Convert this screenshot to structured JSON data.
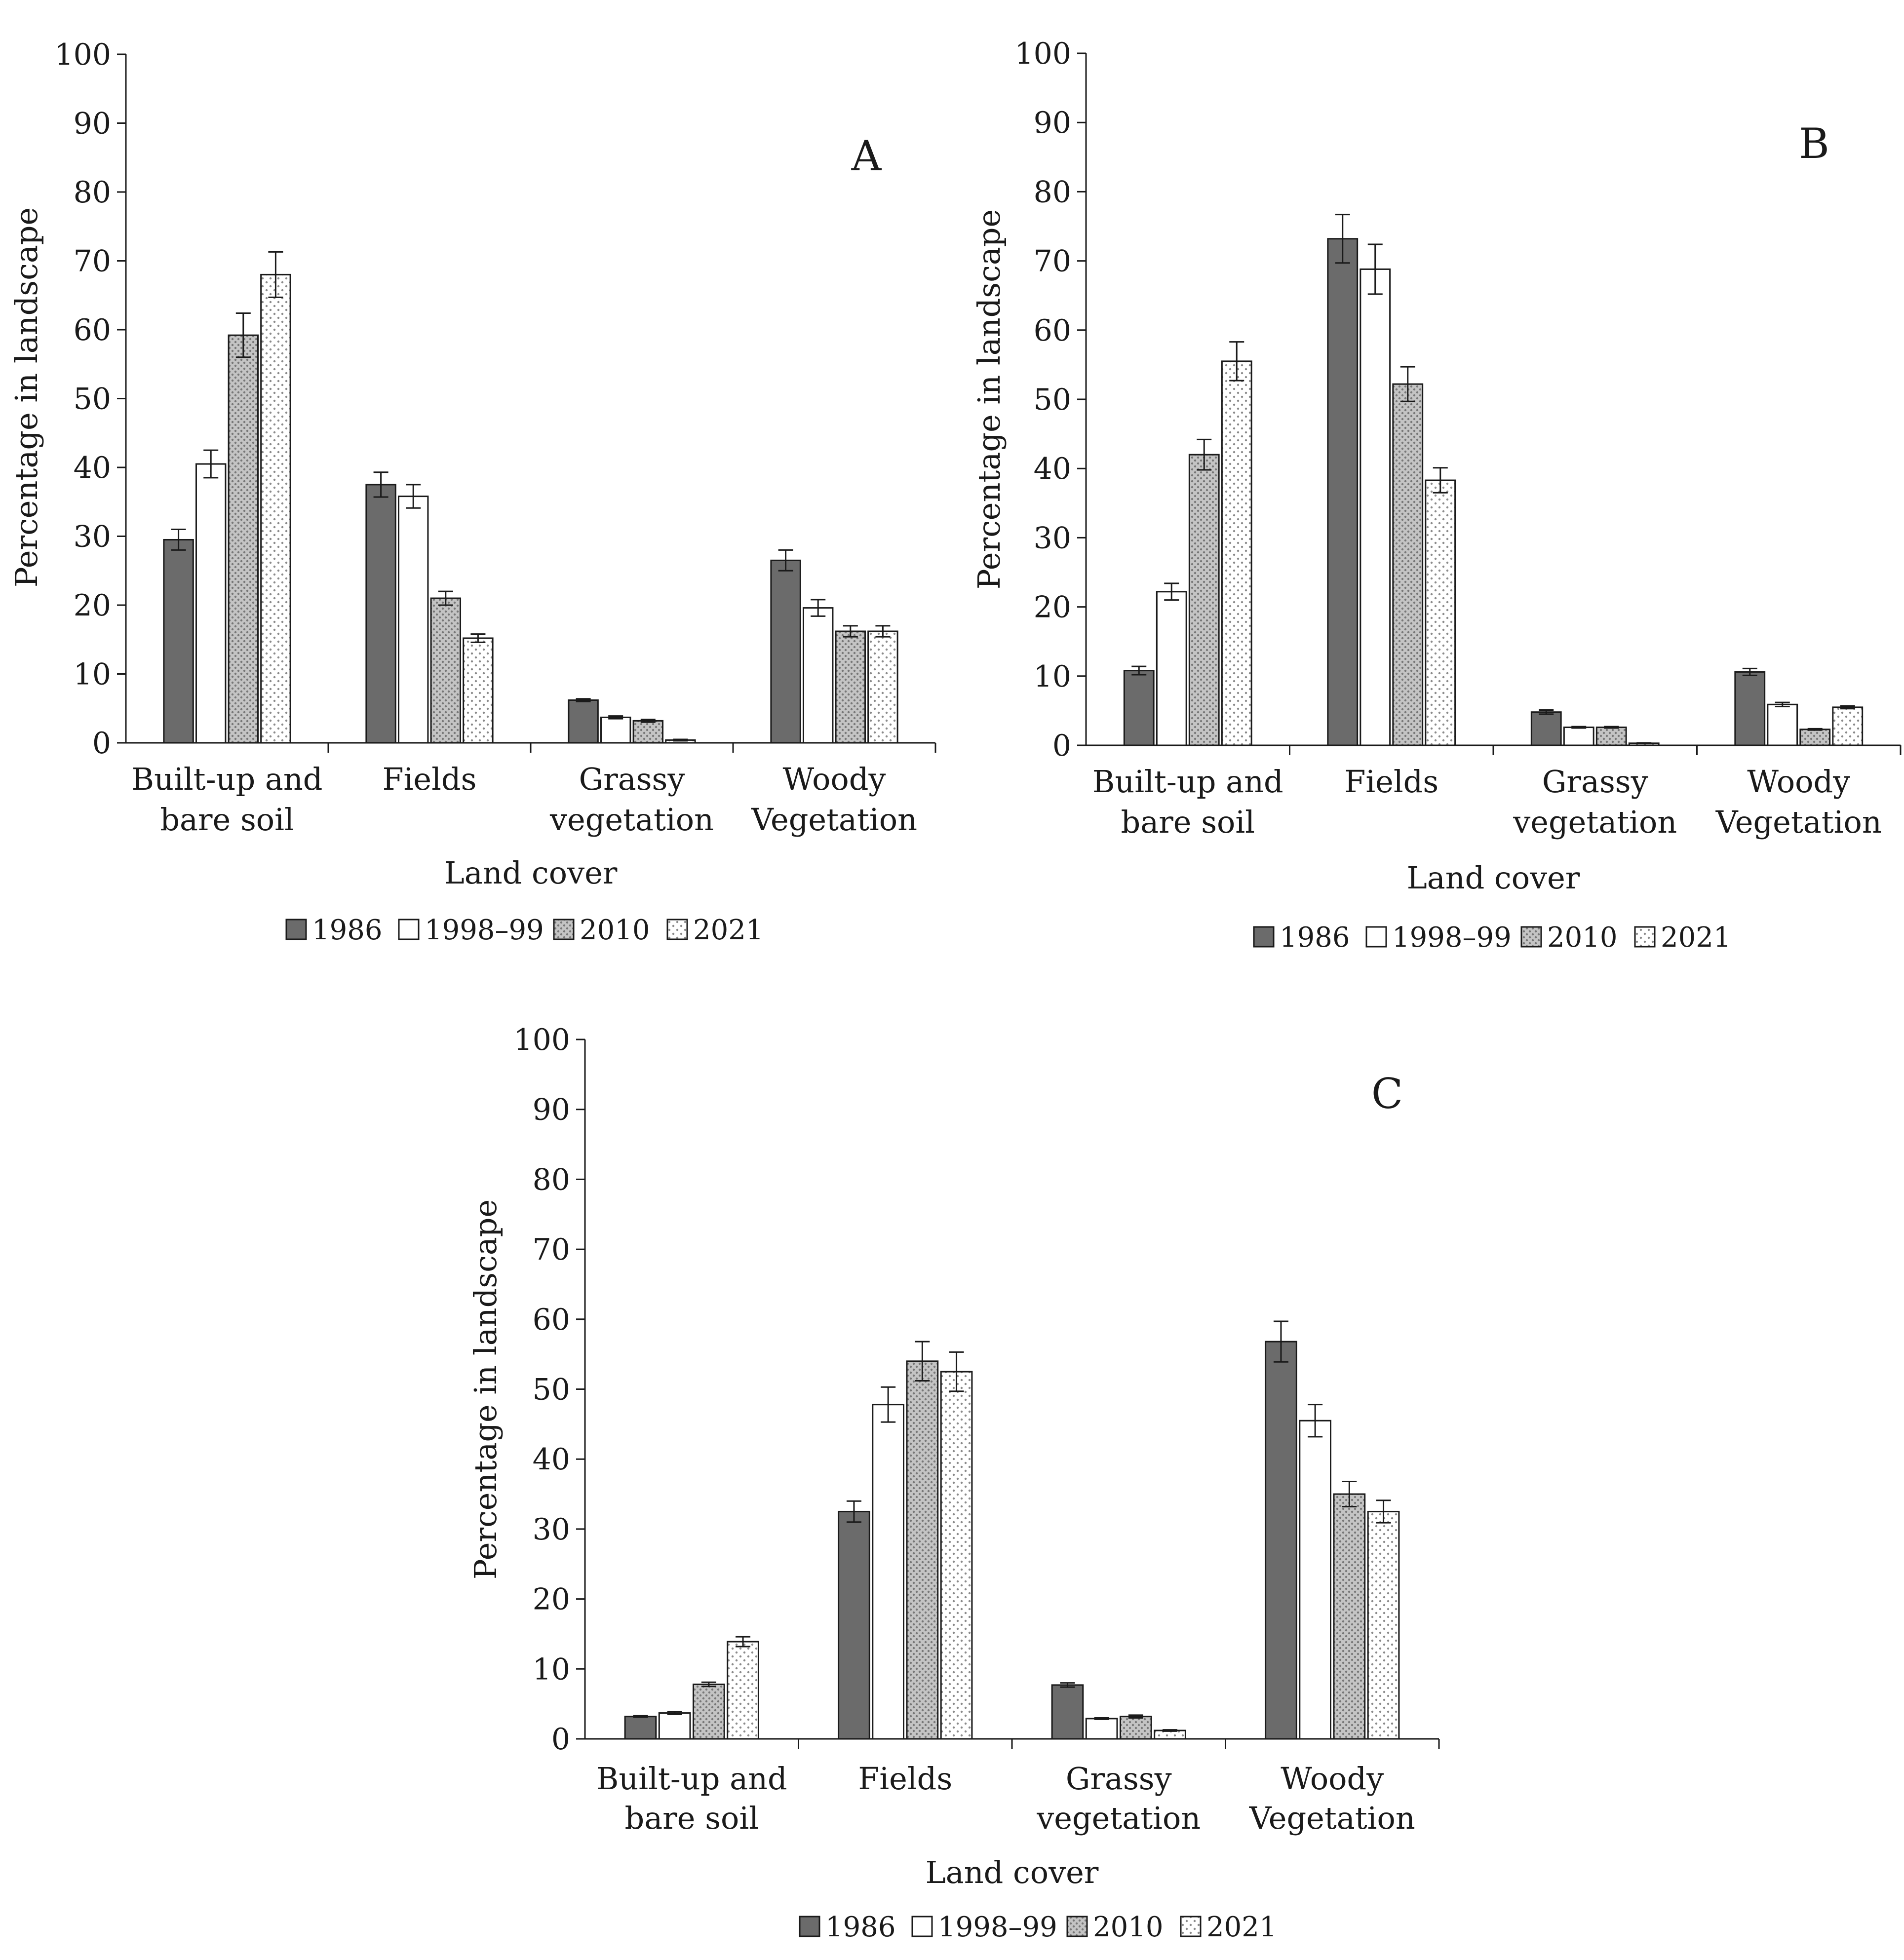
{
  "chart_data": [
    {
      "type": "bar",
      "panel_label": "A",
      "categories": [
        [
          "Built-up and",
          "bare soil"
        ],
        [
          "Fields"
        ],
        [
          "Grassy",
          "vegetation"
        ],
        [
          "Woody",
          "Vegetation"
        ]
      ],
      "series": [
        {
          "name": "1986",
          "values": [
            29.5,
            37.5,
            6.2,
            26.5
          ],
          "errors": [
            1.5,
            1.8,
            0.2,
            1.5
          ]
        },
        {
          "name": "1998–99",
          "values": [
            40.5,
            35.8,
            3.7,
            19.6
          ],
          "errors": [
            2.0,
            1.7,
            0.2,
            1.2
          ]
        },
        {
          "name": "2010",
          "values": [
            59.2,
            21.0,
            3.2,
            16.2
          ],
          "errors": [
            3.2,
            1.0,
            0.2,
            0.8
          ]
        },
        {
          "name": "2021",
          "values": [
            68.0,
            15.2,
            0.4,
            16.2
          ],
          "errors": [
            3.3,
            0.6,
            0.1,
            0.8
          ]
        }
      ],
      "yticks": [
        "0",
        "10",
        "20",
        "30",
        "40",
        "50",
        "60",
        "70",
        "80",
        "90",
        "100"
      ],
      "ylim": [
        0,
        100
      ],
      "xlabel": "Land cover",
      "ylabel": "Percentage in landscape",
      "legend": "bottom"
    },
    {
      "type": "bar",
      "panel_label": "B",
      "categories": [
        [
          "Built-up and",
          "bare soil"
        ],
        [
          "Fields"
        ],
        [
          "Grassy",
          "vegetation"
        ],
        [
          "Woody",
          "Vegetation"
        ]
      ],
      "series": [
        {
          "name": "1986",
          "values": [
            10.8,
            73.2,
            4.8,
            10.6
          ],
          "errors": [
            0.6,
            3.5,
            0.3,
            0.5
          ]
        },
        {
          "name": "1998–99",
          "values": [
            22.2,
            68.8,
            2.6,
            5.9
          ],
          "errors": [
            1.2,
            3.6,
            0.1,
            0.3
          ]
        },
        {
          "name": "2010",
          "values": [
            42.0,
            52.2,
            2.6,
            2.3
          ],
          "errors": [
            2.2,
            2.5,
            0.1,
            0.1
          ]
        },
        {
          "name": "2021",
          "values": [
            55.5,
            38.3,
            0.3,
            5.5
          ],
          "errors": [
            2.8,
            1.8,
            0.05,
            0.2
          ]
        }
      ],
      "yticks": [
        "0",
        "10",
        "20",
        "30",
        "40",
        "50",
        "60",
        "70",
        "80",
        "90",
        "100"
      ],
      "ylim": [
        0,
        100
      ],
      "xlabel": "Land cover",
      "ylabel": "Percentage in landscape",
      "legend": "bottom"
    },
    {
      "type": "bar",
      "panel_label": "C",
      "categories": [
        [
          "Built-up and",
          "bare soil"
        ],
        [
          "Fields"
        ],
        [
          "Grassy",
          "vegetation"
        ],
        [
          "Woody",
          "Vegetation"
        ]
      ],
      "series": [
        {
          "name": "1986",
          "values": [
            3.2,
            32.5,
            7.7,
            56.8
          ],
          "errors": [
            0.1,
            1.5,
            0.3,
            2.9
          ]
        },
        {
          "name": "1998–99",
          "values": [
            3.7,
            47.8,
            2.9,
            45.5
          ],
          "errors": [
            0.2,
            2.5,
            0.1,
            2.3
          ]
        },
        {
          "name": "2010",
          "values": [
            7.8,
            54.0,
            3.2,
            35.0
          ],
          "errors": [
            0.3,
            2.8,
            0.2,
            1.8
          ]
        },
        {
          "name": "2021",
          "values": [
            13.9,
            52.5,
            1.2,
            32.5
          ],
          "errors": [
            0.7,
            2.8,
            0.1,
            1.6
          ]
        }
      ],
      "yticks": [
        "0",
        "10",
        "20",
        "30",
        "40",
        "50",
        "60",
        "70",
        "80",
        "90",
        "100"
      ],
      "ylim": [
        0,
        100
      ],
      "xlabel": "Land cover",
      "ylabel": "Percentage in landscape",
      "legend": "bottom"
    }
  ],
  "series_styles": [
    {
      "name": "1986",
      "fill": "#6b6b6b",
      "pattern": "solid"
    },
    {
      "name": "1998–99",
      "fill": "#ffffff",
      "pattern": "none"
    },
    {
      "name": "2010",
      "fill": "#bcbcbc",
      "pattern": "dense-dots"
    },
    {
      "name": "2021",
      "fill": "#ffffff",
      "pattern": "sparse-dots"
    }
  ]
}
